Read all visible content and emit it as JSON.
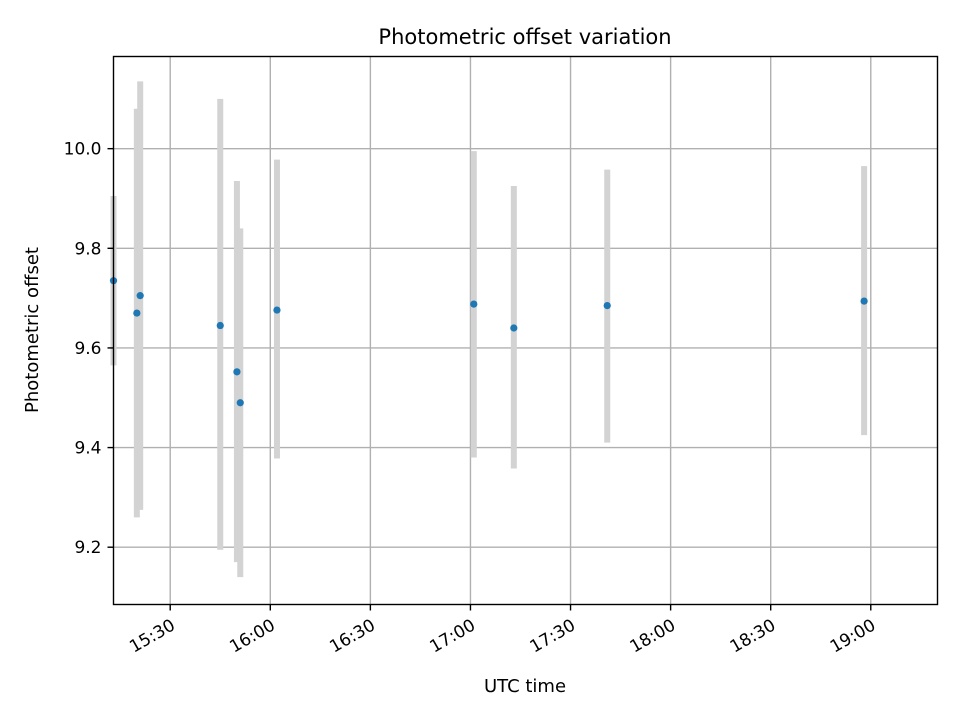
{
  "chart_data": {
    "type": "scatter",
    "title": "Photometric offset variation",
    "xlabel": "UTC time",
    "ylabel": "Photometric offset",
    "x_axis_kind": "time",
    "xlim": [
      "15:13",
      "19:20"
    ],
    "ylim": [
      9.085,
      10.185
    ],
    "grid": true,
    "x_ticks": [
      "15:30",
      "16:00",
      "16:30",
      "17:00",
      "17:30",
      "18:00",
      "18:30",
      "19:00"
    ],
    "y_ticks": [
      9.2,
      9.4,
      9.6,
      9.8,
      10.0
    ],
    "y_tick_labels": [
      "9.2",
      "9.4",
      "9.6",
      "9.8",
      "10.0"
    ],
    "x_tick_label_rotation": "30 degrees",
    "marker_color": "#1f77b4",
    "errorbar_color": "#d3d3d3",
    "points": [
      {
        "time": "15:13",
        "y": 9.735,
        "y_low": 9.565,
        "y_high": 9.905
      },
      {
        "time": "15:20",
        "y": 9.67,
        "y_low": 9.26,
        "y_high": 10.08
      },
      {
        "time": "15:21",
        "y": 9.705,
        "y_low": 9.275,
        "y_high": 10.135
      },
      {
        "time": "15:45",
        "y": 9.645,
        "y_low": 9.195,
        "y_high": 10.1
      },
      {
        "time": "15:50",
        "y": 9.552,
        "y_low": 9.17,
        "y_high": 9.935
      },
      {
        "time": "15:51",
        "y": 9.49,
        "y_low": 9.14,
        "y_high": 9.84
      },
      {
        "time": "16:02",
        "y": 9.676,
        "y_low": 9.378,
        "y_high": 9.978
      },
      {
        "time": "17:01",
        "y": 9.688,
        "y_low": 9.38,
        "y_high": 9.995
      },
      {
        "time": "17:13",
        "y": 9.64,
        "y_low": 9.358,
        "y_high": 9.925
      },
      {
        "time": "17:41",
        "y": 9.685,
        "y_low": 9.41,
        "y_high": 9.958
      },
      {
        "time": "18:58",
        "y": 9.694,
        "y_low": 9.425,
        "y_high": 9.965
      }
    ]
  }
}
